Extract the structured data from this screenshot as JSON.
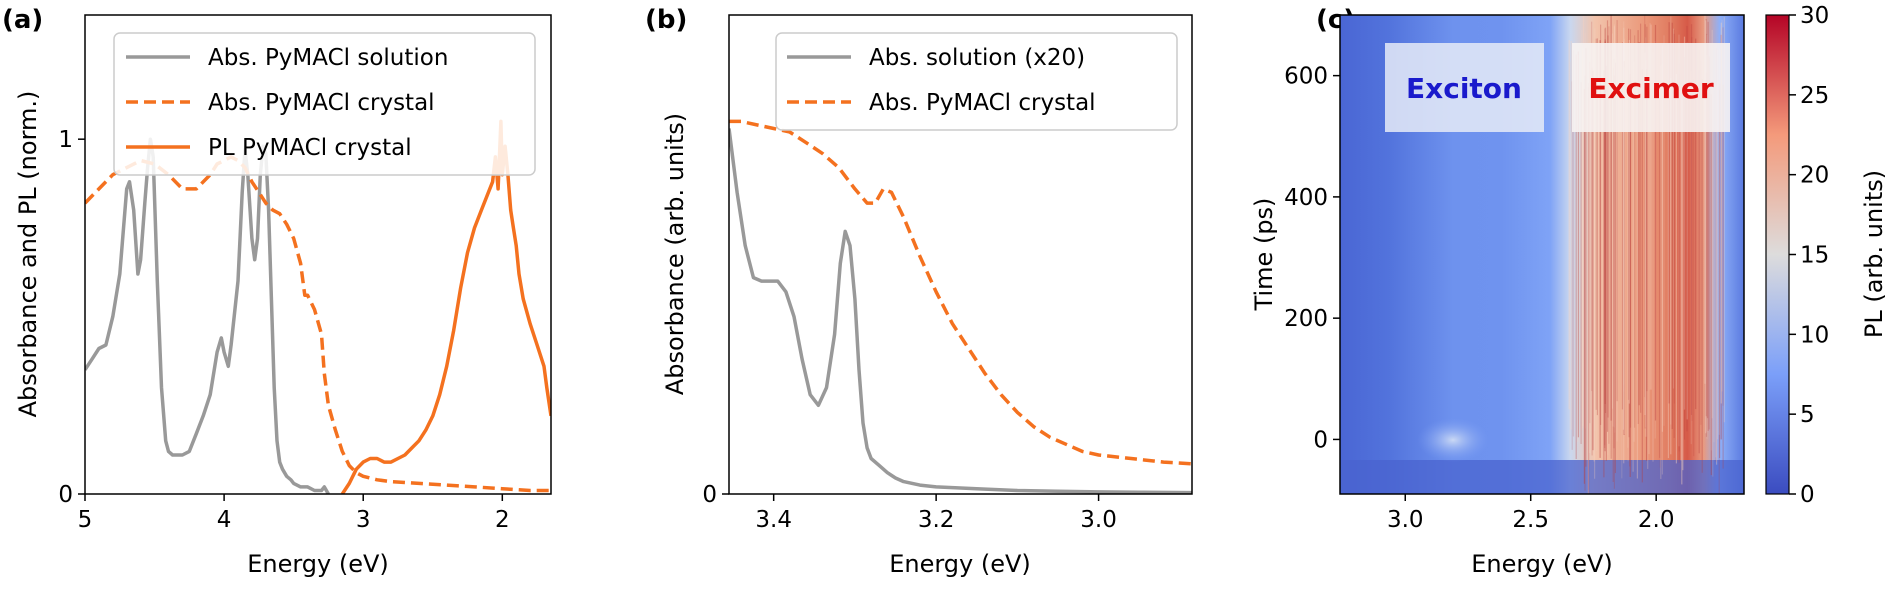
{
  "chart_data": [
    {
      "panel_label": "(a)",
      "type": "line",
      "xlabel": "Energy (eV)",
      "ylabel": "Absorbance and PL (norm.)",
      "xlim": [
        5.0,
        1.65
      ],
      "ylim": [
        0,
        1.35
      ],
      "x_reversed": true,
      "xticks": [
        5,
        4,
        3,
        2
      ],
      "xtick_labels": [
        "5",
        "4",
        "3",
        "2"
      ],
      "yticks": [
        0,
        1
      ],
      "ytick_labels": [
        "0",
        "1"
      ],
      "legend_position": "top-right",
      "series": [
        {
          "name": "Abs. PyMACl solution",
          "color": "#999999",
          "style": "solid",
          "x": [
            5.0,
            4.95,
            4.9,
            4.85,
            4.8,
            4.75,
            4.7,
            4.68,
            4.65,
            4.62,
            4.6,
            4.57,
            4.55,
            4.53,
            4.51,
            4.48,
            4.45,
            4.42,
            4.4,
            4.37,
            4.35,
            4.3,
            4.25,
            4.2,
            4.15,
            4.1,
            4.05,
            4.02,
            4.0,
            3.97,
            3.95,
            3.9,
            3.87,
            3.85,
            3.83,
            3.8,
            3.78,
            3.76,
            3.74,
            3.72,
            3.7,
            3.68,
            3.66,
            3.64,
            3.62,
            3.6,
            3.58,
            3.55,
            3.52,
            3.5,
            3.45,
            3.4,
            3.35,
            3.3,
            3.28,
            3.25
          ],
          "y": [
            0.35,
            0.38,
            0.41,
            0.42,
            0.5,
            0.62,
            0.86,
            0.88,
            0.8,
            0.62,
            0.66,
            0.82,
            0.92,
            1.0,
            0.95,
            0.6,
            0.3,
            0.15,
            0.12,
            0.11,
            0.11,
            0.11,
            0.12,
            0.17,
            0.22,
            0.28,
            0.4,
            0.44,
            0.4,
            0.36,
            0.42,
            0.6,
            0.85,
            0.97,
            0.9,
            0.72,
            0.66,
            0.72,
            0.9,
            0.98,
            0.96,
            0.8,
            0.55,
            0.3,
            0.15,
            0.09,
            0.07,
            0.05,
            0.04,
            0.03,
            0.02,
            0.02,
            0.01,
            0.01,
            0.02,
            0.0
          ]
        },
        {
          "name": "Abs. PyMACl crystal",
          "color": "#f4711f",
          "style": "dashed",
          "x": [
            5.0,
            4.9,
            4.8,
            4.7,
            4.6,
            4.5,
            4.4,
            4.3,
            4.2,
            4.1,
            4.05,
            4.0,
            3.95,
            3.9,
            3.85,
            3.8,
            3.75,
            3.7,
            3.65,
            3.6,
            3.55,
            3.5,
            3.45,
            3.42,
            3.4,
            3.35,
            3.3,
            3.28,
            3.25,
            3.2,
            3.15,
            3.1,
            3.05,
            3.0,
            2.9,
            2.8,
            2.6,
            2.4,
            2.2,
            2.0,
            1.8,
            1.65
          ],
          "y": [
            0.82,
            0.86,
            0.9,
            0.92,
            0.94,
            0.93,
            0.9,
            0.86,
            0.86,
            0.9,
            0.93,
            0.94,
            0.95,
            0.94,
            0.92,
            0.88,
            0.85,
            0.82,
            0.8,
            0.79,
            0.76,
            0.72,
            0.65,
            0.56,
            0.56,
            0.52,
            0.45,
            0.34,
            0.25,
            0.18,
            0.12,
            0.08,
            0.06,
            0.05,
            0.04,
            0.035,
            0.03,
            0.025,
            0.02,
            0.015,
            0.01,
            0.01
          ]
        },
        {
          "name": "PL PyMACl crystal",
          "color": "#f4711f",
          "style": "solid",
          "x": [
            3.15,
            3.1,
            3.05,
            3.0,
            2.95,
            2.9,
            2.85,
            2.8,
            2.75,
            2.7,
            2.65,
            2.6,
            2.55,
            2.5,
            2.45,
            2.4,
            2.35,
            2.3,
            2.25,
            2.2,
            2.15,
            2.1,
            2.07,
            2.05,
            2.03,
            2.01,
            2.0,
            1.98,
            1.96,
            1.94,
            1.92,
            1.9,
            1.88,
            1.85,
            1.8,
            1.75,
            1.7,
            1.68,
            1.65
          ],
          "y": [
            0.0,
            0.03,
            0.07,
            0.09,
            0.1,
            0.1,
            0.09,
            0.09,
            0.1,
            0.11,
            0.13,
            0.15,
            0.18,
            0.22,
            0.28,
            0.36,
            0.46,
            0.58,
            0.68,
            0.75,
            0.8,
            0.85,
            0.88,
            0.95,
            0.86,
            1.05,
            0.9,
            0.98,
            0.9,
            0.8,
            0.75,
            0.7,
            0.62,
            0.55,
            0.48,
            0.42,
            0.36,
            0.3,
            0.22
          ]
        }
      ]
    },
    {
      "panel_label": "(b)",
      "type": "line",
      "xlabel": "Energy (eV)",
      "ylabel": "Absorbance (arb. units)",
      "xlim": [
        3.455,
        2.885
      ],
      "ylim": [
        0,
        1.35
      ],
      "x_reversed": true,
      "xticks": [
        3.4,
        3.2,
        3.0
      ],
      "xtick_labels": [
        "3.4",
        "3.2",
        "3.0"
      ],
      "yticks": [
        0
      ],
      "ytick_labels": [
        "0"
      ],
      "legend_position": "top-right",
      "series": [
        {
          "name": "Abs. solution (x20)",
          "color": "#999999",
          "style": "solid",
          "x": [
            3.455,
            3.445,
            3.435,
            3.425,
            3.415,
            3.405,
            3.395,
            3.385,
            3.375,
            3.365,
            3.355,
            3.345,
            3.335,
            3.325,
            3.318,
            3.312,
            3.306,
            3.3,
            3.295,
            3.29,
            3.285,
            3.28,
            3.27,
            3.26,
            3.25,
            3.24,
            3.22,
            3.2,
            3.15,
            3.1,
            3.05,
            3.0,
            2.95,
            2.885
          ],
          "y": [
            1.03,
            0.85,
            0.7,
            0.61,
            0.6,
            0.6,
            0.6,
            0.57,
            0.5,
            0.38,
            0.28,
            0.25,
            0.3,
            0.45,
            0.65,
            0.74,
            0.7,
            0.55,
            0.35,
            0.2,
            0.13,
            0.1,
            0.08,
            0.06,
            0.045,
            0.035,
            0.025,
            0.02,
            0.015,
            0.01,
            0.008,
            0.006,
            0.005,
            0.004
          ]
        },
        {
          "name": "Abs. PyMACl crystal",
          "color": "#f4711f",
          "style": "dashed",
          "x": [
            3.455,
            3.44,
            3.42,
            3.4,
            3.38,
            3.36,
            3.34,
            3.32,
            3.3,
            3.285,
            3.275,
            3.265,
            3.255,
            3.24,
            3.22,
            3.2,
            3.18,
            3.16,
            3.14,
            3.12,
            3.1,
            3.08,
            3.06,
            3.04,
            3.02,
            3.0,
            2.96,
            2.92,
            2.885
          ],
          "y": [
            1.05,
            1.05,
            1.04,
            1.03,
            1.02,
            0.99,
            0.96,
            0.92,
            0.86,
            0.82,
            0.82,
            0.86,
            0.85,
            0.78,
            0.67,
            0.57,
            0.48,
            0.41,
            0.34,
            0.28,
            0.23,
            0.19,
            0.16,
            0.14,
            0.12,
            0.11,
            0.1,
            0.09,
            0.085
          ]
        }
      ]
    },
    {
      "panel_label": "(c)",
      "type": "heatmap",
      "xlabel": "Energy (eV)",
      "ylabel": "Time (ps)",
      "xlim": [
        3.26,
        1.65
      ],
      "ylim": [
        -90,
        700
      ],
      "x_reversed": true,
      "xticks": [
        3.0,
        2.5,
        2.0
      ],
      "xtick_labels": [
        "3.0",
        "2.5",
        "2.0"
      ],
      "yticks": [
        0,
        200,
        400,
        600
      ],
      "ytick_labels": [
        "0",
        "200",
        "400",
        "600"
      ],
      "colorbar": {
        "label": "PL (arb. units)",
        "range": [
          0,
          30
        ],
        "ticks": [
          0,
          5,
          10,
          15,
          20,
          25,
          30
        ],
        "tick_labels": [
          "0",
          "5",
          "10",
          "15",
          "20",
          "25",
          "30"
        ],
        "colormap": "coolwarm"
      },
      "annotations": [
        {
          "text": "Exciton",
          "color": "#1a1acc"
        },
        {
          "text": "Excimer",
          "color": "#e01010"
        }
      ],
      "profile": {
        "description": "PL intensity vs energy, roughly constant in time after 0 ps",
        "energy": [
          3.26,
          3.1,
          2.95,
          2.9,
          2.8,
          2.6,
          2.45,
          2.38,
          2.33,
          2.25,
          2.1,
          2.0,
          1.95,
          1.9,
          1.85,
          1.75,
          1.65
        ],
        "intensity": [
          2,
          3,
          4,
          4.5,
          4,
          4,
          5,
          8,
          13,
          16,
          19,
          22,
          21,
          15,
          8,
          4,
          3
        ]
      }
    }
  ]
}
